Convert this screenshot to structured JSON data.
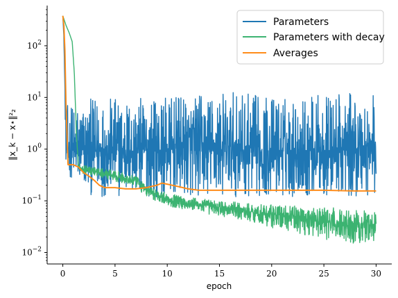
{
  "chart_data": {
    "type": "line",
    "xlabel": "epoch",
    "ylabel": "‖x_k − x⋆‖²₂",
    "xlim": [
      -1.5,
      31.5
    ],
    "ylim": [
      0.006,
      600
    ],
    "yscale": "log",
    "x_ticks": [
      0,
      5,
      10,
      15,
      20,
      25,
      30
    ],
    "x_tick_labels": [
      "0",
      "5",
      "10",
      "15",
      "20",
      "25",
      "30"
    ],
    "y_ticks": [
      0.01,
      0.1,
      1,
      10,
      100
    ],
    "y_tick_base": "10",
    "y_tick_exponents": [
      "−2",
      "−1",
      "0",
      "1",
      "2"
    ],
    "grid": false,
    "legend_position": "top-right",
    "series": [
      {
        "name": "Parameters",
        "color": "#1f77b4",
        "style": "noisy",
        "x": [
          0,
          0.1,
          0.2,
          0.3,
          0.4,
          0.6,
          1,
          2,
          3,
          5,
          8,
          10,
          12,
          15,
          18,
          20,
          22,
          25,
          28,
          30
        ],
        "center": [
          380,
          150,
          15,
          1.5,
          0.9,
          0.9,
          0.9,
          0.95,
          0.95,
          0.95,
          0.95,
          0.95,
          0.95,
          0.95,
          0.95,
          0.95,
          0.95,
          0.95,
          0.95,
          0.95
        ],
        "upper": [
          380,
          150,
          20,
          5,
          7,
          8,
          8,
          8,
          10,
          10,
          10,
          10,
          11,
          13,
          12,
          11,
          10,
          12,
          12,
          13
        ],
        "lower": [
          380,
          150,
          8,
          0.5,
          0.35,
          0.3,
          0.25,
          0.15,
          0.12,
          0.12,
          0.12,
          0.12,
          0.12,
          0.12,
          0.12,
          0.12,
          0.12,
          0.12,
          0.12,
          0.12
        ]
      },
      {
        "name": "Parameters with decay",
        "color": "#3cb371",
        "style": "noisy",
        "x": [
          0,
          0.3,
          0.6,
          0.9,
          1.1,
          1.3,
          1.5,
          2,
          3,
          5,
          7,
          8,
          10,
          12,
          15,
          18,
          20,
          22,
          25,
          28,
          30
        ],
        "center": [
          380,
          250,
          180,
          120,
          30,
          2,
          0.45,
          0.4,
          0.37,
          0.3,
          0.24,
          0.16,
          0.11,
          0.09,
          0.075,
          0.06,
          0.055,
          0.05,
          0.04,
          0.035,
          0.035
        ],
        "upper": [
          380,
          250,
          180,
          120,
          30,
          2.2,
          0.5,
          0.48,
          0.45,
          0.38,
          0.3,
          0.2,
          0.14,
          0.12,
          0.1,
          0.09,
          0.085,
          0.08,
          0.075,
          0.07,
          0.06
        ],
        "lower": [
          380,
          250,
          180,
          120,
          30,
          1.8,
          0.4,
          0.33,
          0.3,
          0.24,
          0.18,
          0.12,
          0.08,
          0.065,
          0.05,
          0.04,
          0.03,
          0.025,
          0.018,
          0.015,
          0.017
        ]
      },
      {
        "name": "Averages",
        "color": "#ff8c1a",
        "style": "line",
        "x": [
          0,
          0.1,
          0.2,
          0.3,
          0.5,
          1,
          1.5,
          2,
          2.5,
          3,
          3.5,
          4,
          5,
          6,
          7,
          8,
          9,
          9.5,
          10,
          11,
          12,
          13,
          15,
          18,
          20,
          22,
          25,
          28,
          30
        ],
        "values": [
          380,
          250,
          80,
          8,
          0.5,
          0.5,
          0.45,
          0.35,
          0.3,
          0.25,
          0.2,
          0.18,
          0.18,
          0.17,
          0.17,
          0.18,
          0.2,
          0.22,
          0.21,
          0.19,
          0.17,
          0.16,
          0.16,
          0.16,
          0.16,
          0.16,
          0.16,
          0.155,
          0.155
        ]
      }
    ]
  }
}
